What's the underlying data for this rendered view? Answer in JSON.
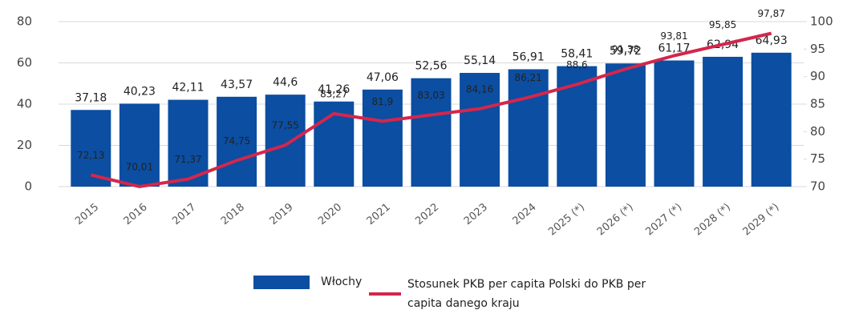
{
  "chart_data": {
    "type": "bar",
    "categories": [
      "2015",
      "2016",
      "2017",
      "2018",
      "2019",
      "2020",
      "2021",
      "2022",
      "2023",
      "2024",
      "2025 (*)",
      "2026 (*)",
      "2027 (*)",
      "2028 (*)",
      "2029 (*)"
    ],
    "series": [
      {
        "name": "Włochy",
        "color": "#0b4ea2",
        "type": "bar",
        "values": [
          37.18,
          40.23,
          42.11,
          43.57,
          44.6,
          41.26,
          47.06,
          52.56,
          55.14,
          56.91,
          58.41,
          59.72,
          61.17,
          62.94,
          64.93
        ],
        "value_labels": [
          "37,18",
          "40,23",
          "42,11",
          "43,57",
          "44,6",
          "41,26",
          "47,06",
          "52,56",
          "55,14",
          "56,91",
          "58,41",
          "59,72",
          "61,17",
          "62,94",
          "64,93"
        ]
      },
      {
        "name": "Stosunek PKB per capita Polski do PKB per capita danego kraju",
        "color": "#d4264c",
        "type": "line",
        "axis": "y2",
        "values": [
          72.13,
          70.01,
          71.37,
          74.75,
          77.55,
          83.27,
          81.9,
          83.03,
          84.16,
          86.21,
          88.6,
          91.38,
          93.81,
          95.85,
          97.87
        ],
        "value_labels": [
          "72,13",
          "70,01",
          "71,37",
          "74,75",
          "77,55",
          "83,27",
          "81,9",
          "83,03",
          "84,16",
          "86,21",
          "88,6",
          "91,38",
          "93,81",
          "95,85",
          "97,87"
        ]
      }
    ],
    "ylim": [
      0,
      80
    ],
    "yticks": [
      0,
      20,
      40,
      60,
      80
    ],
    "y2lim": [
      70,
      100
    ],
    "y2ticks": [
      70,
      75,
      80,
      85,
      90,
      95,
      100
    ],
    "grid": true,
    "legend": "bottom"
  }
}
